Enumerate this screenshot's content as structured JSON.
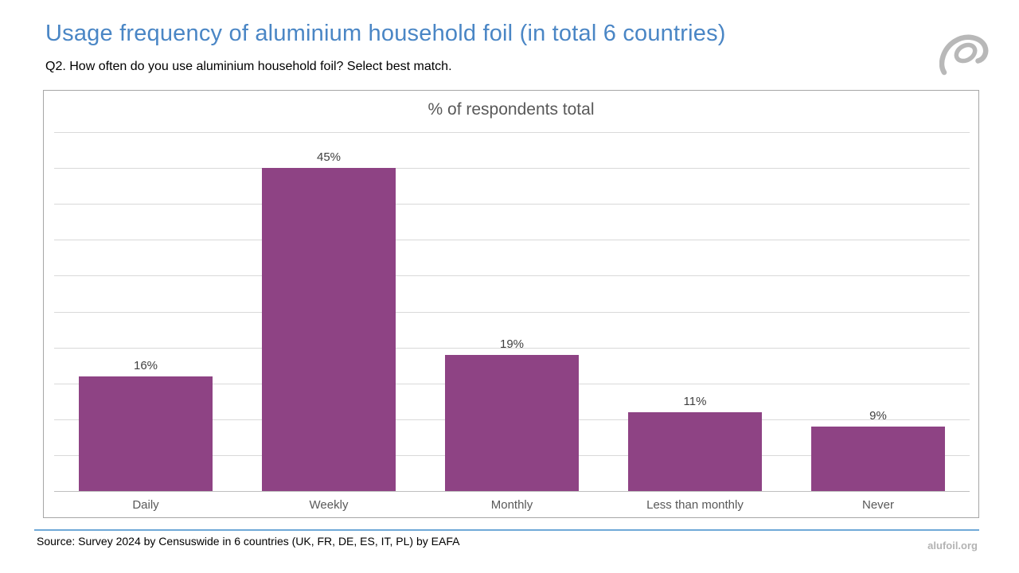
{
  "header": {
    "title": "Usage frequency of aluminium household foil (in total 6 countries)",
    "subtitle": "Q2. How often do you use aluminium household foil? Select best match.",
    "logo_icon": "alufoil-swirl-logo"
  },
  "chart_data": {
    "type": "bar",
    "title": "% of respondents total",
    "categories": [
      "Daily",
      "Weekly",
      "Monthly",
      "Less than monthly",
      "Never"
    ],
    "values": [
      16,
      45,
      19,
      11,
      9
    ],
    "value_labels": [
      "16%",
      "45%",
      "19%",
      "11%",
      "9%"
    ],
    "xlabel": "",
    "ylabel": "",
    "ylim": [
      0,
      50
    ],
    "grid_step": 5,
    "grid": true,
    "legend": false,
    "y_tick_labels_visible": false,
    "bar_color": "#8e4384"
  },
  "footer": {
    "source": "Source: Survey 2024 by Censuswide in 6 countries (UK, FR, DE, ES, IT, PL) by EAFA",
    "website": "alufoil.org"
  },
  "colors": {
    "title_blue": "#4a86c5",
    "bar_purple": "#8e4384",
    "gridline": "#d9d9d9",
    "axis_line": "#bfbfbf",
    "chart_border": "#a6a6a6",
    "chart_title_gray": "#595959",
    "separator_blue": "#70a9d8",
    "website_gray": "#b3b3b3"
  }
}
